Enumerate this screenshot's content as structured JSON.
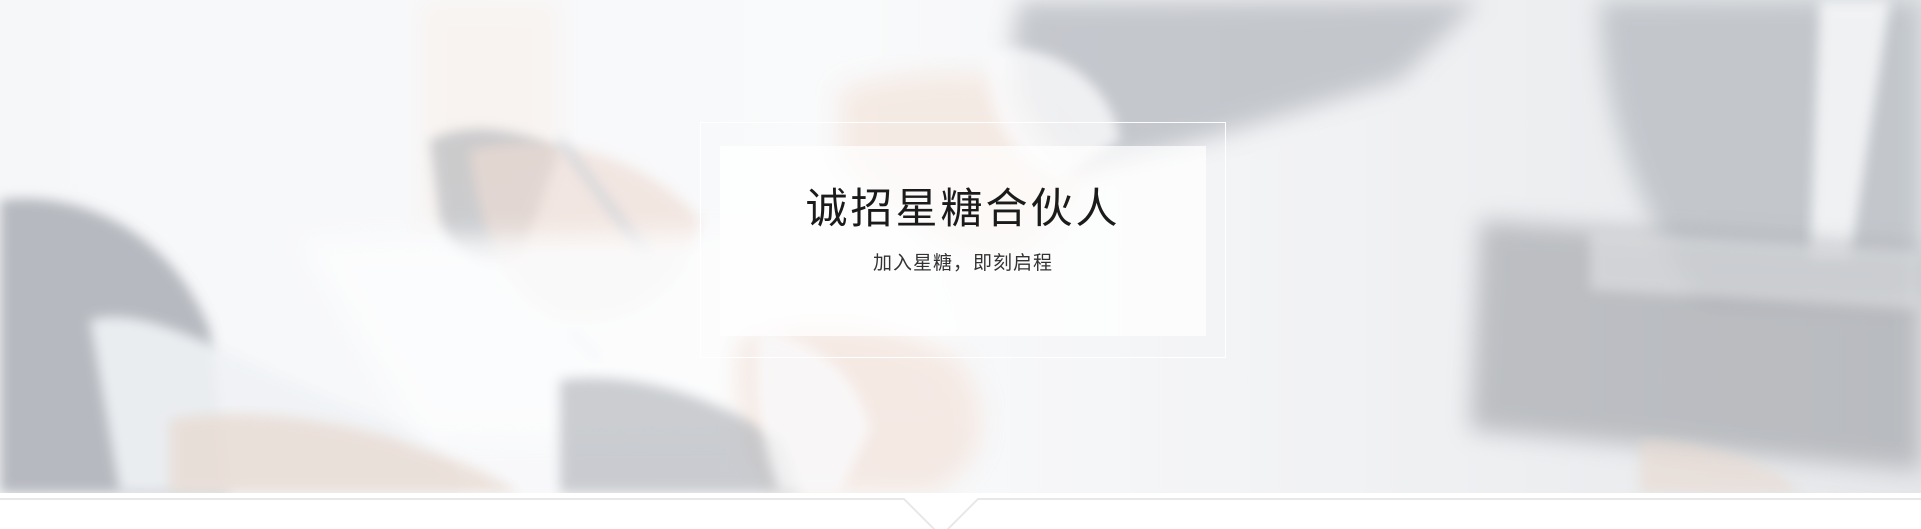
{
  "banner": {
    "title": "诚招星糖合伙人",
    "subtitle": "加入星糖，即刻启程",
    "background_image": "handshake-business-photo"
  },
  "colors": {
    "title_text": "#1b1b1b",
    "subtitle_text": "#333333",
    "card_background": "rgba(255,255,255,0.72)",
    "frame_border": "#ffffff",
    "page_background": "#ffffff"
  },
  "indicator": {
    "icon": "chevron-down-icon"
  }
}
